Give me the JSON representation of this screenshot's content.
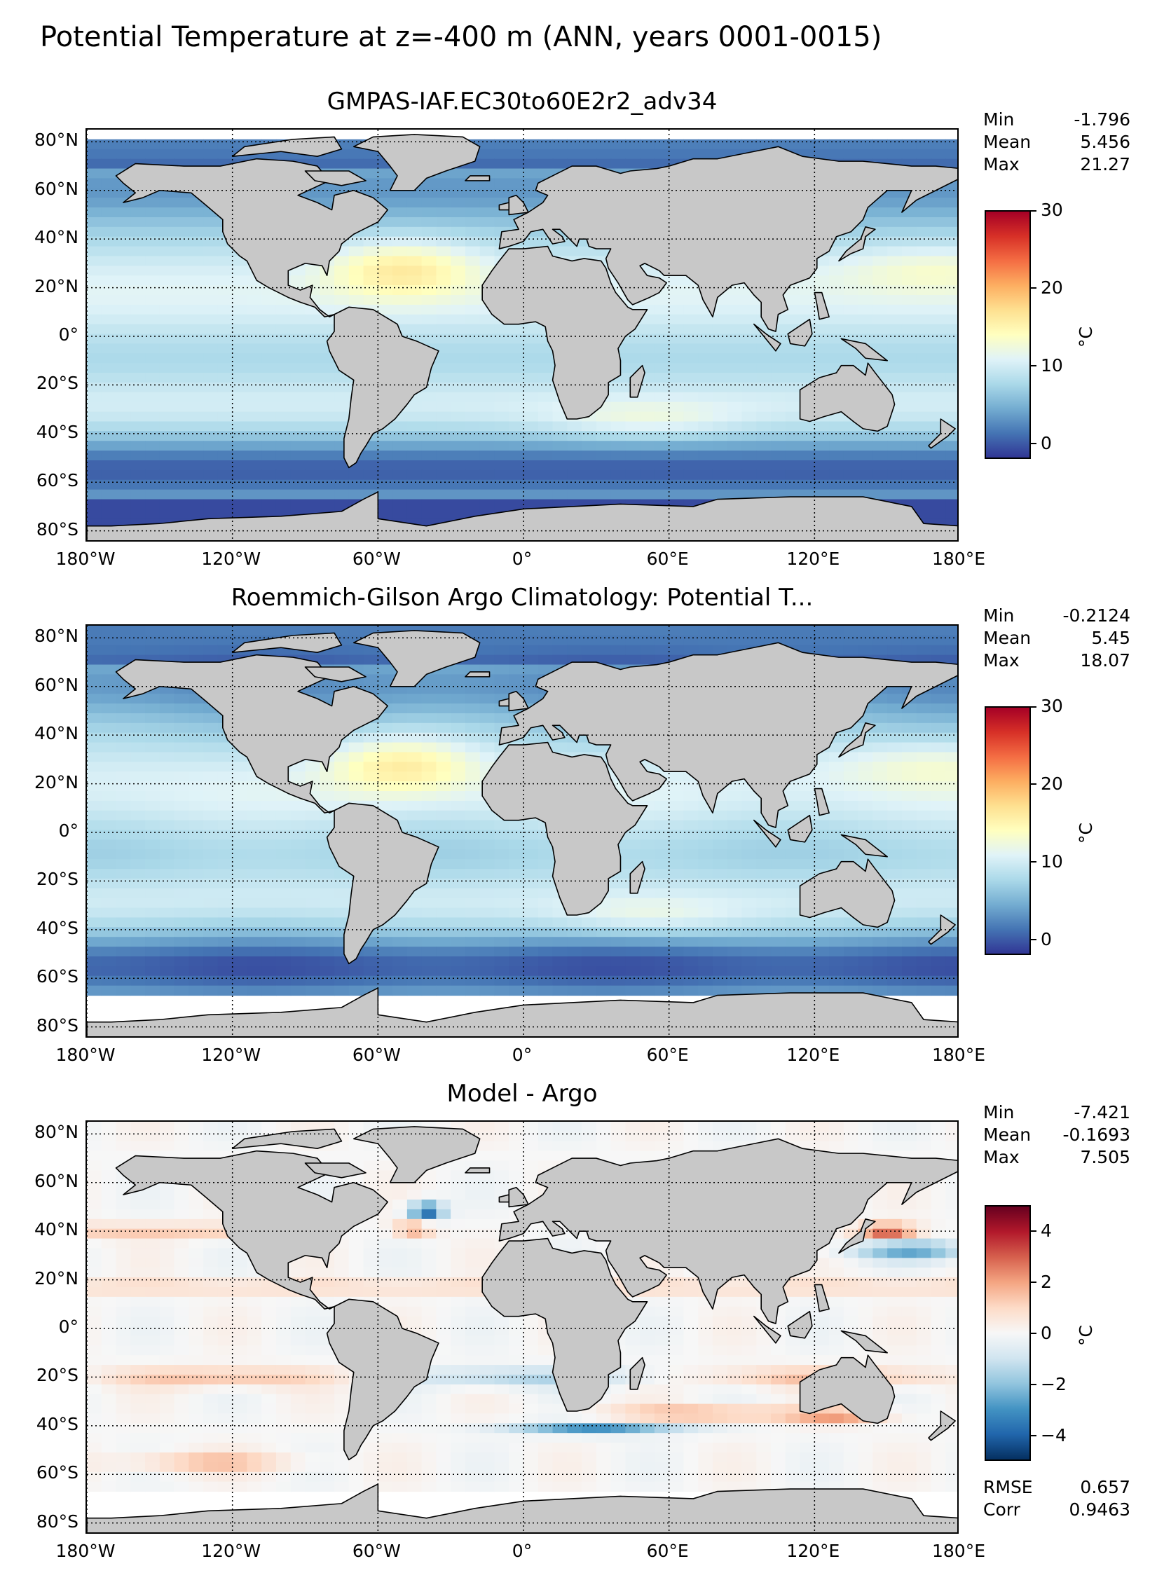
{
  "suptitle": "Potential Temperature at z=-400 m (ANN, years 0001-0015)",
  "panels": [
    {
      "title": "GMPAS-IAF.EC30to60E2r2_adv34",
      "stats": [
        [
          "Min",
          "-1.796"
        ],
        [
          "Mean",
          "5.456"
        ],
        [
          "Max",
          "21.27"
        ]
      ],
      "colorbar": {
        "label": "°C",
        "ticks": [
          "30",
          "20",
          "10",
          "0"
        ],
        "range": [
          -2,
          30
        ],
        "cmap": "RdYlBu_r"
      },
      "extra_stats": []
    },
    {
      "title": "Roemmich-Gilson Argo Climatology: Potential T...",
      "stats": [
        [
          "Min",
          "-0.2124"
        ],
        [
          "Mean",
          "5.45"
        ],
        [
          "Max",
          "18.07"
        ]
      ],
      "colorbar": {
        "label": "°C",
        "ticks": [
          "30",
          "20",
          "10",
          "0"
        ],
        "range": [
          -2,
          30
        ],
        "cmap": "RdYlBu_r"
      },
      "extra_stats": []
    },
    {
      "title": "Model - Argo",
      "stats": [
        [
          "Min",
          "-7.421"
        ],
        [
          "Mean",
          "-0.1693"
        ],
        [
          "Max",
          "7.505"
        ]
      ],
      "colorbar": {
        "label": "°C",
        "ticks": [
          "4",
          "2",
          "0",
          "−2",
          "−4"
        ],
        "range": [
          -5,
          5
        ],
        "cmap": "RdBu_r"
      },
      "extra_stats": [
        [
          "RMSE",
          "0.657"
        ],
        [
          "Corr",
          "0.9463"
        ]
      ]
    }
  ],
  "lat_ticks": [
    "80°N",
    "60°N",
    "40°N",
    "20°N",
    "0°",
    "20°S",
    "40°S",
    "60°S",
    "80°S"
  ],
  "lon_ticks": [
    "180°W",
    "120°W",
    "60°W",
    "0°",
    "60°E",
    "120°E",
    "180°E"
  ],
  "chart_data": [
    {
      "type": "heatmap",
      "title": "GMPAS-IAF.EC30to60E2r2_adv34",
      "xlabel": "",
      "ylabel": "",
      "xlim": [
        -180,
        180
      ],
      "ylim": [
        -85,
        85
      ],
      "colorbar_label": "°C",
      "vmin": -2,
      "vmax": 30,
      "stats": {
        "min": -1.796,
        "mean": 5.456,
        "max": 21.27
      },
      "grid": true
    },
    {
      "type": "heatmap",
      "title": "Roemmich-Gilson Argo Climatology: Potential T...",
      "xlabel": "",
      "ylabel": "",
      "xlim": [
        -180,
        180
      ],
      "ylim": [
        -85,
        85
      ],
      "colorbar_label": "°C",
      "vmin": -2,
      "vmax": 30,
      "stats": {
        "min": -0.2124,
        "mean": 5.45,
        "max": 18.07
      },
      "grid": true
    },
    {
      "type": "heatmap",
      "title": "Model - Argo",
      "xlabel": "",
      "ylabel": "",
      "xlim": [
        -180,
        180
      ],
      "ylim": [
        -85,
        85
      ],
      "colorbar_label": "°C",
      "vmin": -5,
      "vmax": 5,
      "stats": {
        "min": -7.421,
        "mean": -0.1693,
        "max": 7.505,
        "rmse": 0.657,
        "corr": 0.9463
      },
      "grid": true
    }
  ]
}
